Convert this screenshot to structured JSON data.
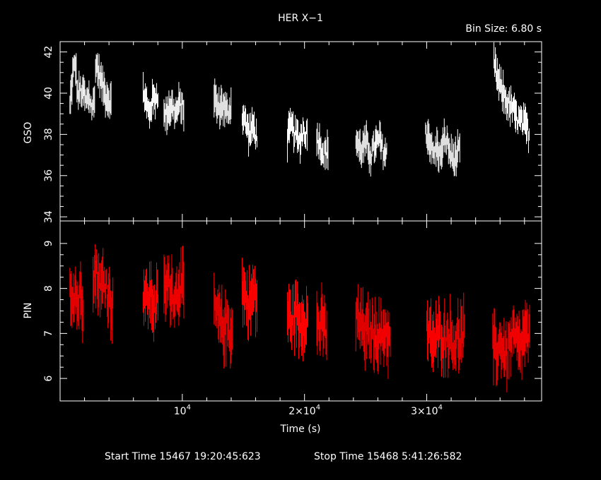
{
  "title": "HER X−1",
  "bin_size": "Bin Size: 6.80 s",
  "footer": {
    "start": "Start Time 15467 19:20:45:623",
    "stop": "Stop Time 15468  5:41:26:582"
  },
  "colors": {
    "background": "#000000",
    "axes": "#ffffff",
    "gso": "#ffffff",
    "pin": "#ff0000"
  },
  "chart_data": [
    {
      "type": "line",
      "name": "gso-panel",
      "ylabel": "GSO",
      "xlabel": "",
      "xlim": [
        0,
        39400
      ],
      "ylim": [
        33.8,
        42.5
      ],
      "yticks": [
        "34",
        "36",
        "38",
        "40",
        "42"
      ],
      "color": "#ffffff",
      "segments": [
        {
          "x0": 800,
          "x1": 1900,
          "y": [
            39.3,
            40.8,
            41.5,
            39.8,
            40.2,
            39.7
          ]
        },
        {
          "x0": 1900,
          "x1": 2800,
          "y": [
            40.2,
            39.5,
            39.9,
            39.3,
            39.6
          ]
        },
        {
          "x0": 2900,
          "x1": 4200,
          "y": [
            41.5,
            41.0,
            40.5,
            40.0,
            39.8,
            39.5
          ]
        },
        {
          "x0": 6800,
          "x1": 8000,
          "y": [
            40.2,
            39.5,
            39.0,
            39.6,
            39.8,
            40.0
          ]
        },
        {
          "x0": 8500,
          "x1": 10100,
          "y": [
            38.8,
            39.2,
            39.4,
            39.0,
            39.5,
            39.2
          ]
        },
        {
          "x0": 12600,
          "x1": 14000,
          "y": [
            39.8,
            39.2,
            39.5,
            39.0,
            39.4
          ]
        },
        {
          "x0": 14900,
          "x1": 16100,
          "y": [
            39.0,
            38.5,
            38.0,
            38.4,
            37.8
          ]
        },
        {
          "x0": 18600,
          "x1": 20200,
          "y": [
            37.8,
            38.4,
            38.0,
            37.6,
            38.2,
            38.0
          ]
        },
        {
          "x0": 21000,
          "x1": 21900,
          "y": [
            38.0,
            37.5,
            37.0,
            37.2
          ]
        },
        {
          "x0": 24200,
          "x1": 25800,
          "y": [
            37.8,
            37.2,
            37.6,
            37.0,
            37.5
          ]
        },
        {
          "x0": 25800,
          "x1": 26700,
          "y": [
            37.4,
            37.8,
            37.2,
            37.0
          ]
        },
        {
          "x0": 29900,
          "x1": 31200,
          "y": [
            38.2,
            37.8,
            37.0,
            37.4,
            36.8
          ]
        },
        {
          "x0": 31200,
          "x1": 32700,
          "y": [
            37.3,
            37.8,
            37.0,
            36.8,
            37.2
          ]
        },
        {
          "x0": 35500,
          "x1": 37000,
          "y": [
            41.5,
            40.5,
            40.0,
            39.5,
            39.2
          ]
        },
        {
          "x0": 37000,
          "x1": 38400,
          "y": [
            39.2,
            38.8,
            38.6,
            38.4,
            38.0
          ]
        }
      ],
      "error_half_height": 0.55
    },
    {
      "type": "line",
      "name": "pin-panel",
      "ylabel": "PIN",
      "xlabel": "Time (s)",
      "xlim": [
        0,
        39400
      ],
      "ylim": [
        5.5,
        9.5
      ],
      "yticks": [
        "6",
        "7",
        "8",
        "9"
      ],
      "xticks": [
        {
          "value": 10000,
          "base": "10",
          "exp": "4"
        },
        {
          "value": 20000,
          "base": "2×10",
          "exp": "4"
        },
        {
          "value": 30000,
          "base": "3×10",
          "exp": "4"
        }
      ],
      "color": "#ff0000",
      "segments": [
        {
          "x0": 800,
          "x1": 1900,
          "y": [
            8.1,
            7.8,
            8.0,
            7.6,
            7.9,
            7.7
          ]
        },
        {
          "x0": 2700,
          "x1": 4300,
          "y": [
            8.4,
            8.3,
            8.0,
            8.2,
            7.8,
            7.6
          ]
        },
        {
          "x0": 6800,
          "x1": 8000,
          "y": [
            8.0,
            7.7,
            7.9,
            7.5,
            7.8
          ]
        },
        {
          "x0": 8500,
          "x1": 10100,
          "y": [
            7.9,
            8.1,
            8.0,
            7.8,
            8.2,
            7.9
          ]
        },
        {
          "x0": 12600,
          "x1": 14100,
          "y": [
            7.6,
            7.3,
            7.1,
            7.2,
            7.0
          ]
        },
        {
          "x0": 14900,
          "x1": 16100,
          "y": [
            8.0,
            7.8,
            7.6,
            7.9,
            7.7
          ]
        },
        {
          "x0": 18600,
          "x1": 20300,
          "y": [
            7.4,
            7.3,
            7.5,
            7.2,
            7.4,
            7.3
          ]
        },
        {
          "x0": 21000,
          "x1": 21800,
          "y": [
            7.3,
            7.1,
            7.2,
            7.0
          ]
        },
        {
          "x0": 24200,
          "x1": 25800,
          "y": [
            7.3,
            7.2,
            7.0,
            7.1,
            6.9
          ]
        },
        {
          "x0": 25800,
          "x1": 27000,
          "y": [
            7.0,
            6.9,
            7.1,
            6.8
          ]
        },
        {
          "x0": 30000,
          "x1": 31400,
          "y": [
            7.0,
            6.9,
            6.8,
            7.0,
            6.9
          ]
        },
        {
          "x0": 31400,
          "x1": 33100,
          "y": [
            6.9,
            7.0,
            6.8,
            6.9,
            7.0
          ]
        },
        {
          "x0": 35400,
          "x1": 36800,
          "y": [
            6.7,
            6.6,
            6.8,
            6.5,
            6.7
          ]
        },
        {
          "x0": 36800,
          "x1": 38400,
          "y": [
            6.8,
            6.9,
            6.6,
            7.0,
            6.8
          ]
        }
      ],
      "error_half_height": 0.45
    }
  ]
}
